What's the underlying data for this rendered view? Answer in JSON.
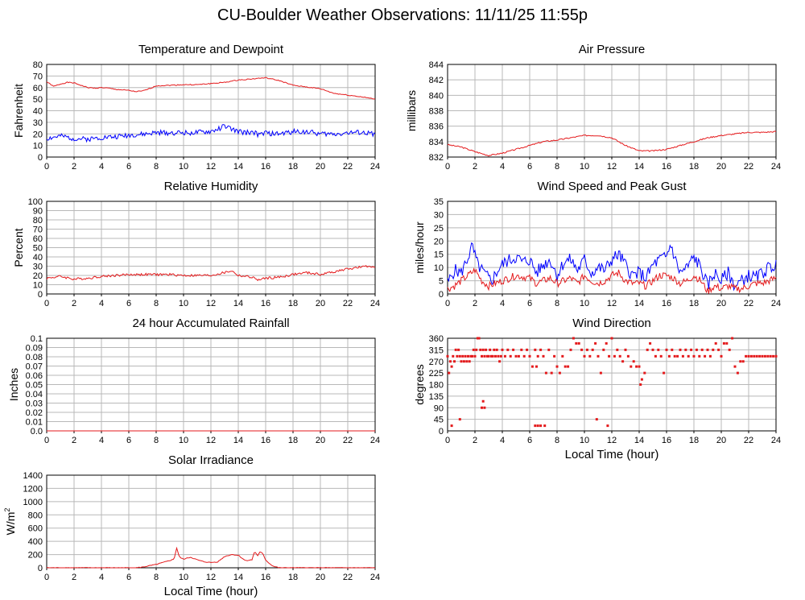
{
  "title": "CU-Boulder Weather Observations: 11/11/25 11:55p",
  "colors": {
    "primary_series": "#e41a1c",
    "secondary_series": "#0000ff",
    "grid": "#b8b8b8"
  },
  "chart_data": [
    {
      "id": "temperature",
      "type": "line",
      "title": "Temperature and Dewpoint",
      "xlabel": "",
      "ylabel": "Fahrenheit",
      "xlim": [
        0,
        24
      ],
      "ylim": [
        0,
        80
      ],
      "xticks": [
        0,
        2,
        4,
        6,
        8,
        10,
        12,
        14,
        16,
        18,
        20,
        22,
        24
      ],
      "yticks": [
        0,
        10,
        20,
        30,
        40,
        50,
        60,
        70,
        80
      ],
      "grid": true,
      "series": [
        {
          "color": "#e41a1c",
          "noise": 0.4,
          "seed": 1,
          "x": [
            0,
            0.5,
            1,
            1.5,
            2,
            2.5,
            3,
            3.5,
            4,
            4.5,
            5,
            5.5,
            6,
            6.5,
            7,
            7.5,
            8,
            9,
            10,
            11,
            12,
            13,
            14,
            15,
            16,
            17,
            18,
            19,
            20,
            21,
            22,
            23,
            24
          ],
          "y": [
            65,
            61,
            63,
            64.5,
            64,
            62,
            60,
            59.5,
            60,
            59.5,
            58.5,
            58,
            57.5,
            56.5,
            57,
            59,
            61.5,
            62,
            62.5,
            62.5,
            63.5,
            64.5,
            66.5,
            67.5,
            68.5,
            66,
            62,
            60.5,
            59,
            55,
            53.5,
            52,
            50
          ]
        },
        {
          "color": "#0000ff",
          "noise": 2.2,
          "seed": 2,
          "x": [
            0,
            1,
            2,
            3,
            4,
            5,
            6,
            7,
            8,
            9,
            10,
            11,
            12,
            12.5,
            13,
            13.5,
            14,
            14.5,
            15,
            15.5,
            16,
            16.5,
            17,
            18,
            19,
            20,
            21,
            22,
            23,
            24
          ],
          "y": [
            16,
            18,
            16,
            15.5,
            17,
            17.5,
            19,
            19.5,
            21,
            21,
            21,
            21,
            22,
            24,
            27,
            24,
            22,
            21,
            22,
            19,
            21,
            20,
            20,
            22,
            22,
            20,
            20,
            21,
            21,
            20
          ]
        }
      ]
    },
    {
      "id": "pressure",
      "type": "line",
      "title": "Air Pressure",
      "xlabel": "",
      "ylabel": "millibars",
      "xlim": [
        0,
        24
      ],
      "ylim": [
        832,
        844
      ],
      "xticks": [
        0,
        2,
        4,
        6,
        8,
        10,
        12,
        14,
        16,
        18,
        20,
        22,
        24
      ],
      "yticks": [
        832,
        834,
        836,
        838,
        840,
        842,
        844
      ],
      "grid": true,
      "series": [
        {
          "color": "#e41a1c",
          "noise": 0.08,
          "seed": 3,
          "x": [
            0,
            1,
            2,
            3,
            4,
            5,
            6,
            7,
            8,
            9,
            10,
            11,
            12,
            13,
            14,
            15,
            16,
            17,
            18,
            19,
            20,
            21,
            22,
            23,
            24
          ],
          "y": [
            833.6,
            833.3,
            832.7,
            832.2,
            832.5,
            833,
            833.5,
            834,
            834.2,
            834.5,
            834.8,
            834.8,
            834.5,
            833.5,
            832.8,
            832.8,
            833,
            833.5,
            834,
            834.5,
            834.8,
            835,
            835.2,
            835.2,
            835.3
          ]
        }
      ]
    },
    {
      "id": "humidity",
      "type": "line",
      "title": "Relative Humidity",
      "xlabel": "",
      "ylabel": "Percent",
      "xlim": [
        0,
        24
      ],
      "ylim": [
        0,
        100
      ],
      "xticks": [
        0,
        2,
        4,
        6,
        8,
        10,
        12,
        14,
        16,
        18,
        20,
        22,
        24
      ],
      "yticks": [
        0,
        10,
        20,
        30,
        40,
        50,
        60,
        70,
        80,
        90,
        100
      ],
      "grid": true,
      "series": [
        {
          "color": "#e41a1c",
          "noise": 1.3,
          "seed": 4,
          "x": [
            0,
            1,
            2,
            3,
            4,
            5,
            6,
            7,
            8,
            9,
            10,
            11,
            12,
            13,
            13.5,
            14,
            15,
            15.5,
            16,
            17,
            18,
            19,
            20,
            21,
            22,
            23,
            24
          ],
          "y": [
            17,
            19,
            16,
            17,
            19,
            20,
            21,
            21,
            21,
            21,
            20,
            20,
            20,
            23,
            25,
            20,
            18,
            15,
            17,
            18,
            21,
            23,
            21,
            24,
            27,
            29,
            30
          ]
        }
      ]
    },
    {
      "id": "wind-speed",
      "type": "line",
      "title": "Wind Speed and Peak Gust",
      "xlabel": "",
      "ylabel": "miles/hour",
      "xlim": [
        0,
        24
      ],
      "ylim": [
        0,
        35
      ],
      "xticks": [
        0,
        2,
        4,
        6,
        8,
        10,
        12,
        14,
        16,
        18,
        20,
        22,
        24
      ],
      "yticks": [
        0,
        5,
        10,
        15,
        20,
        25,
        30,
        35
      ],
      "grid": true,
      "series": [
        {
          "color": "#0000ff",
          "noise": 2.5,
          "seed": 5,
          "x": [
            0,
            0.5,
            1,
            1.5,
            1.8,
            2.2,
            2.8,
            3.2,
            3.8,
            4.2,
            5,
            5.5,
            6,
            6.5,
            7,
            7.5,
            8,
            8.5,
            9,
            9.5,
            10,
            10.5,
            11,
            11.5,
            12,
            12.5,
            13,
            13.5,
            14,
            14.5,
            15,
            15.5,
            16,
            16.3,
            16.7,
            17,
            17.5,
            18,
            18.5,
            19,
            19.5,
            20,
            20.5,
            21,
            21.5,
            22,
            22.5,
            23,
            23.5,
            24
          ],
          "y": [
            4,
            9,
            8,
            14,
            18,
            11,
            7,
            5,
            10,
            12,
            14,
            12,
            13,
            8,
            11,
            13,
            7,
            12,
            13,
            9,
            13,
            8,
            10,
            9,
            13,
            15,
            11,
            7,
            8,
            6,
            11,
            13,
            14,
            19,
            12,
            8,
            10,
            14,
            10,
            3,
            8,
            5,
            8,
            3,
            5,
            7,
            6,
            8,
            10,
            11
          ]
        },
        {
          "color": "#e41a1c",
          "noise": 1.4,
          "seed": 6,
          "x": [
            0,
            0.5,
            1,
            1.5,
            2,
            2.5,
            3,
            3.5,
            4,
            5,
            6,
            6.5,
            7,
            7.5,
            8,
            8.5,
            9,
            9.5,
            10,
            10.5,
            11,
            11.5,
            12,
            12.5,
            13,
            13.5,
            14,
            14.5,
            15,
            15.5,
            16,
            16.5,
            17,
            17.5,
            18,
            18.5,
            19,
            19.5,
            20,
            20.5,
            21,
            21.5,
            22,
            22.5,
            23,
            23.5,
            24
          ],
          "y": [
            2,
            3,
            5,
            7,
            9,
            5,
            3,
            4,
            5,
            7,
            6,
            4,
            5,
            6,
            4,
            5,
            6,
            4,
            7,
            5,
            4,
            5,
            7,
            8,
            5,
            4,
            4,
            3,
            5,
            7,
            7,
            6,
            4,
            5,
            7,
            5,
            1,
            3,
            2,
            3,
            2,
            2,
            3,
            4,
            4,
            5,
            6
          ]
        }
      ]
    },
    {
      "id": "rainfall",
      "type": "line",
      "title": "24 hour Accumulated Rainfall",
      "xlabel": "",
      "ylabel": "Inches",
      "xlim": [
        0,
        24
      ],
      "ylim": [
        0,
        0.1
      ],
      "xticks": [
        0,
        2,
        4,
        6,
        8,
        10,
        12,
        14,
        16,
        18,
        20,
        22,
        24
      ],
      "yticks": [
        0.0,
        0.01,
        0.02,
        0.03,
        0.04,
        0.05,
        0.06,
        0.07,
        0.08,
        0.09,
        0.1
      ],
      "ytick_labels": [
        "0.0",
        "0.01",
        "0.02",
        "0.03",
        "0.04",
        "0.05",
        "0.06",
        "0.07",
        "0.08",
        "0.09",
        "0.1"
      ],
      "grid": true,
      "series": [
        {
          "color": "#e41a1c",
          "noise": 0,
          "seed": 7,
          "x": [
            0,
            24
          ],
          "y": [
            0,
            0
          ]
        }
      ]
    },
    {
      "id": "wind-direction",
      "type": "scatter",
      "title": "Wind Direction",
      "xlabel": "Local Time (hour)",
      "ylabel": "degrees",
      "xlim": [
        0,
        24
      ],
      "ylim": [
        0,
        360
      ],
      "xticks": [
        0,
        2,
        4,
        6,
        8,
        10,
        12,
        14,
        16,
        18,
        20,
        22,
        24
      ],
      "yticks": [
        0,
        45,
        90,
        135,
        180,
        225,
        270,
        315,
        360
      ],
      "grid": true,
      "series": [
        {
          "color": "#e41a1c",
          "x": [
            0,
            0.1,
            0.2,
            0.3,
            0.4,
            0.5,
            0.6,
            0.7,
            0.8,
            0.9,
            1,
            1.1,
            1.2,
            1.3,
            1.4,
            1.5,
            1.6,
            1.7,
            1.8,
            1.9,
            2,
            2.1,
            2.2,
            2.3,
            2.4,
            2.5,
            2.6,
            2.7,
            2.8,
            2.9,
            3,
            3.1,
            3.2,
            3.3,
            3.4,
            3.5,
            3.6,
            3.7,
            3.8,
            3.9,
            4,
            4.2,
            4.4,
            4.6,
            4.8,
            5,
            5.2,
            5.4,
            5.6,
            5.8,
            6,
            6.2,
            6.4,
            6.5,
            6.6,
            6.8,
            7,
            7.2,
            7.4,
            7.6,
            7.8,
            8,
            8.2,
            8.4,
            8.6,
            8.8,
            9,
            9.2,
            9.4,
            9.6,
            9.8,
            10,
            10.2,
            10.4,
            10.6,
            10.8,
            11,
            11.2,
            11.4,
            11.6,
            11.8,
            12,
            12.2,
            12.4,
            12.6,
            12.8,
            13,
            13.2,
            13.4,
            13.6,
            13.8,
            14,
            14.2,
            14.4,
            14.6,
            14.8,
            15,
            15.2,
            15.4,
            15.6,
            15.8,
            16,
            16.2,
            16.4,
            16.6,
            16.8,
            17,
            17.2,
            17.4,
            17.6,
            17.8,
            18,
            18.2,
            18.4,
            18.6,
            18.8,
            19,
            19.2,
            19.4,
            19.6,
            19.8,
            20,
            20.2,
            20.4,
            20.6,
            20.8,
            21,
            21.2,
            21.4,
            21.6,
            21.8,
            22,
            22.2,
            22.4,
            22.6,
            22.8,
            23,
            23.2,
            23.4,
            23.6,
            23.8,
            24,
            0.3,
            0.9,
            2.5,
            2.6,
            2.7,
            6.4,
            6.6,
            6.8,
            7.1,
            10.9,
            11.7,
            14.1
          ],
          "y": [
            290,
            225,
            270,
            250,
            290,
            270,
            315,
            290,
            315,
            290,
            270,
            290,
            270,
            290,
            270,
            290,
            270,
            290,
            290,
            315,
            290,
            315,
            360,
            360,
            315,
            290,
            315,
            290,
            315,
            290,
            290,
            315,
            290,
            290,
            315,
            290,
            315,
            290,
            270,
            290,
            315,
            290,
            315,
            290,
            315,
            290,
            290,
            315,
            290,
            315,
            290,
            250,
            315,
            250,
            290,
            315,
            290,
            225,
            315,
            225,
            290,
            250,
            225,
            290,
            250,
            250,
            315,
            360,
            340,
            340,
            315,
            290,
            315,
            290,
            315,
            340,
            290,
            225,
            315,
            340,
            290,
            360,
            290,
            315,
            290,
            270,
            315,
            290,
            250,
            270,
            250,
            250,
            200,
            225,
            315,
            340,
            315,
            290,
            315,
            290,
            225,
            315,
            290,
            315,
            290,
            290,
            315,
            290,
            315,
            290,
            315,
            290,
            315,
            290,
            315,
            290,
            315,
            290,
            315,
            340,
            315,
            290,
            340,
            340,
            315,
            360,
            250,
            225,
            270,
            270,
            290,
            290,
            290,
            290,
            290,
            290,
            290,
            290,
            290,
            290,
            290,
            290,
            20,
            45,
            90,
            115,
            90,
            20,
            20,
            20,
            20,
            45,
            20,
            180
          ]
        }
      ]
    },
    {
      "id": "solar",
      "type": "line",
      "title": "Solar Irradiance",
      "xlabel": "Local Time (hour)",
      "ylabel": "W/m",
      "ylabel_sup": "2",
      "xlim": [
        0,
        24
      ],
      "ylim": [
        0,
        1400
      ],
      "xticks": [
        0,
        2,
        4,
        6,
        8,
        10,
        12,
        14,
        16,
        18,
        20,
        22,
        24
      ],
      "yticks": [
        0,
        200,
        400,
        600,
        800,
        1000,
        1200,
        1400
      ],
      "grid": true,
      "series": [
        {
          "color": "#e41a1c",
          "noise": 6,
          "seed": 8,
          "x": [
            0,
            6.5,
            7,
            7.5,
            8,
            8.5,
            9,
            9.3,
            9.5,
            9.7,
            10,
            10.5,
            11,
            11.5,
            12,
            12.5,
            13,
            13.5,
            14,
            14.5,
            15,
            15.2,
            15.4,
            15.6,
            15.8,
            16,
            16.3,
            16.6,
            17,
            24
          ],
          "y": [
            0,
            0,
            10,
            30,
            50,
            80,
            110,
            130,
            300,
            160,
            130,
            160,
            120,
            90,
            80,
            90,
            170,
            200,
            190,
            110,
            120,
            250,
            180,
            240,
            210,
            120,
            60,
            20,
            0,
            0
          ]
        }
      ]
    }
  ]
}
